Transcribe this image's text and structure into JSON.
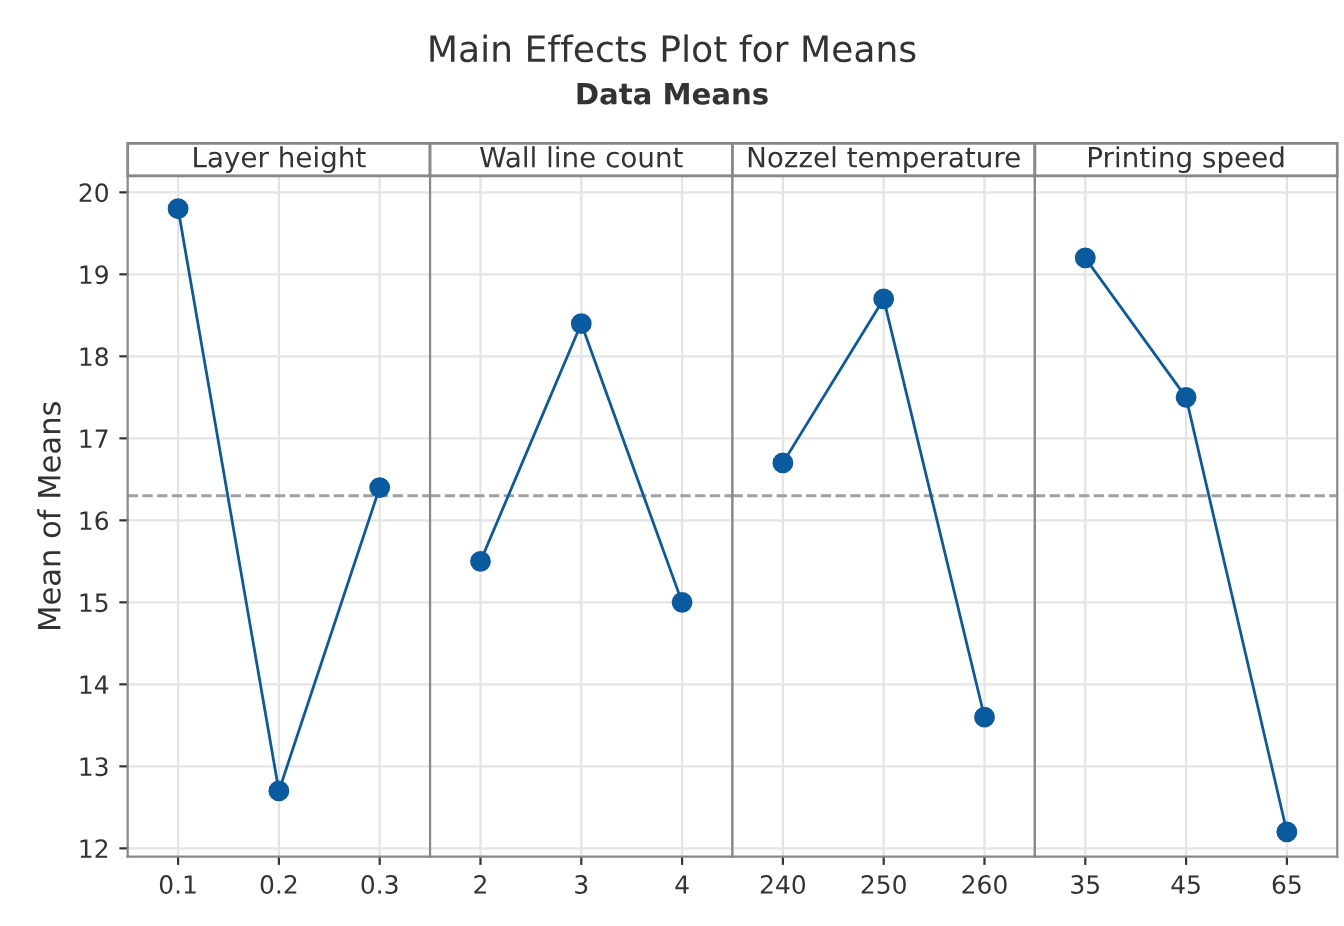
{
  "chart_data": [
    {
      "type": "other",
      "title": "Main Effects Plot for Means",
      "subtitle": "Data Means"
    },
    {
      "type": "line",
      "annotations": [
        "Layer height"
      ],
      "ylabel": "Mean of Means",
      "categories": [
        "0.1",
        "0.2",
        "0.3"
      ],
      "series": [
        {
          "color": "#0a5aa0",
          "values": [
            19.8,
            12.7,
            16.4
          ]
        }
      ],
      "ylim": [
        11.9,
        20.2
      ],
      "yticks": [
        12,
        13,
        14,
        15,
        16,
        17,
        18,
        19,
        20
      ],
      "grid": true,
      "marker": "circle",
      "line_style": "solid",
      "ref_lines": [
        {
          "axis": "y",
          "value": 16.3,
          "color": "#a0a0a0",
          "line_style": "dashed"
        }
      ]
    },
    {
      "type": "line",
      "annotations": [
        "Wall line count"
      ],
      "categories": [
        "2",
        "3",
        "4"
      ],
      "series": [
        {
          "color": "#0a5aa0",
          "values": [
            15.5,
            18.4,
            15.0
          ]
        }
      ],
      "ylim": [
        11.9,
        20.2
      ],
      "yticks": [
        12,
        13,
        14,
        15,
        16,
        17,
        18,
        19,
        20
      ],
      "tick_labels": "x",
      "grid": true,
      "marker": "circle",
      "line_style": "solid",
      "ref_lines": [
        {
          "axis": "y",
          "value": 16.3,
          "color": "#a0a0a0",
          "line_style": "dashed"
        }
      ]
    },
    {
      "type": "line",
      "annotations": [
        "Nozzel temperature"
      ],
      "categories": [
        "240",
        "250",
        "260"
      ],
      "series": [
        {
          "color": "#0a5aa0",
          "values": [
            16.7,
            18.7,
            13.6
          ]
        }
      ],
      "ylim": [
        11.9,
        20.2
      ],
      "yticks": [
        12,
        13,
        14,
        15,
        16,
        17,
        18,
        19,
        20
      ],
      "tick_labels": "x",
      "grid": true,
      "marker": "circle",
      "line_style": "solid",
      "ref_lines": [
        {
          "axis": "y",
          "value": 16.3,
          "color": "#a0a0a0",
          "line_style": "dashed"
        }
      ]
    },
    {
      "type": "line",
      "annotations": [
        "Printing speed"
      ],
      "categories": [
        "35",
        "45",
        "65"
      ],
      "series": [
        {
          "color": "#0a5aa0",
          "values": [
            19.2,
            17.5,
            12.2
          ]
        }
      ],
      "ylim": [
        11.9,
        20.2
      ],
      "yticks": [
        12,
        13,
        14,
        15,
        16,
        17,
        18,
        19,
        20
      ],
      "tick_labels": "x",
      "grid": true,
      "marker": "circle",
      "line_style": "solid",
      "ref_lines": [
        {
          "axis": "y",
          "value": 16.3,
          "color": "#a0a0a0",
          "line_style": "dashed"
        }
      ]
    }
  ]
}
